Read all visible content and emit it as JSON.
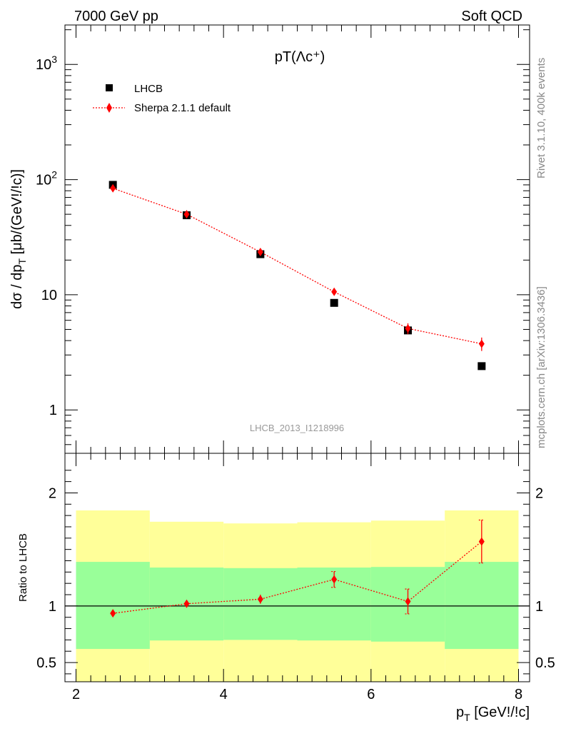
{
  "header": {
    "energy_label": "7000 GeV pp",
    "process_label": "Soft QCD"
  },
  "side_labels": {
    "rivet": "Rivet 3.1.10,  400k events",
    "mcplots": "mcplots.cern.ch [arXiv:1306.3436]"
  },
  "chart_data": [
    {
      "type": "scatter",
      "title": "pT(Λc⁺)",
      "ylabel": "dσ / dp_T [μb/(GeV!/!c)]",
      "xlabel": "p_T [GeV!/!c]",
      "yscale": "log",
      "xlim": [
        1.85,
        8.15
      ],
      "ylim": [
        0.42,
        2200
      ],
      "y_ticks": [
        1,
        10,
        100,
        1000
      ],
      "y_tick_labels": [
        "1",
        "10",
        "10^2",
        "10^3"
      ],
      "analysis_label": "LHCB_2013_I1218996",
      "legend_position": "top-left",
      "series": [
        {
          "name": "LHCB",
          "marker": "square",
          "color": "#000000",
          "x": [
            2.5,
            3.5,
            4.5,
            5.5,
            6.5,
            7.5
          ],
          "y": [
            90,
            49,
            22.5,
            8.5,
            4.9,
            2.4
          ]
        },
        {
          "name": "Sherpa 2.1.1 default",
          "marker": "diamond",
          "color": "#ff0000",
          "line": "dotted",
          "x": [
            2.5,
            3.5,
            4.5,
            5.5,
            6.5,
            7.5
          ],
          "y": [
            84,
            50,
            23.5,
            10.6,
            5.1,
            3.75
          ],
          "y_err": [
            3,
            2,
            1.2,
            0.6,
            0.55,
            0.5
          ]
        }
      ]
    },
    {
      "type": "scatter",
      "ylabel": "Ratio to LHCB",
      "xlim": [
        1.85,
        8.15
      ],
      "ylim": [
        0.33,
        2.35
      ],
      "y_ticks": [
        0.5,
        1,
        2
      ],
      "y_tick_labels": [
        "0.5",
        "1",
        "2"
      ],
      "x_ticks": [
        2,
        4,
        6,
        8
      ],
      "x_tick_labels": [
        "2",
        "4",
        "6",
        "8"
      ],
      "reference_line": 1,
      "bands": {
        "bins": [
          [
            2,
            3
          ],
          [
            3,
            4
          ],
          [
            4,
            5
          ],
          [
            5,
            6
          ],
          [
            6,
            7
          ],
          [
            7,
            8
          ]
        ],
        "inner_color": "#99ff99",
        "outer_color": "#ffff99",
        "inner_upper": [
          1.39,
          1.34,
          1.335,
          1.34,
          1.345,
          1.39
        ],
        "inner_lower": [
          0.62,
          0.695,
          0.7,
          0.695,
          0.685,
          0.62
        ],
        "outer_upper": [
          1.845,
          1.745,
          1.73,
          1.74,
          1.755,
          1.845
        ],
        "outer_lower": [
          0.33,
          0.33,
          0.33,
          0.33,
          0.33,
          0.33
        ]
      },
      "series": [
        {
          "name": "Sherpa 2.1.1 default",
          "marker": "diamond",
          "color": "#ff0000",
          "line": "dotted",
          "x": [
            2.5,
            3.5,
            4.5,
            5.5,
            6.5,
            7.5
          ],
          "y": [
            0.935,
            1.02,
            1.06,
            1.235,
            1.04,
            1.57
          ],
          "y_err": [
            0.025,
            0.03,
            0.04,
            0.07,
            0.11,
            0.19
          ]
        }
      ]
    }
  ]
}
